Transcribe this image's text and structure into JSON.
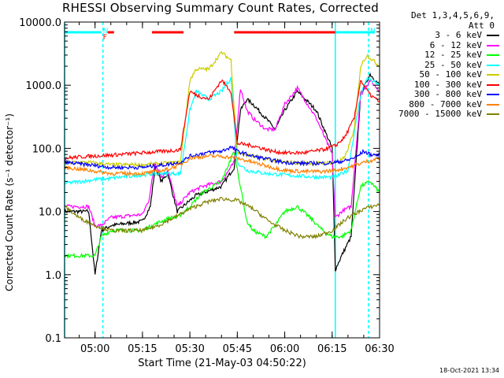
{
  "title": "RHESSI Observing Summary Count Rates, Corrected",
  "legend_header": [
    "Det 1,3,4,5,6,9,",
    "Att 0"
  ],
  "timestamp": "18-Oct-2021 13:34",
  "chart_data": {
    "type": "line",
    "xlabel": "Start Time (21-May-03 04:50:22)",
    "ylabel": "Corrected Count Rate (s⁻¹ detector⁻¹)",
    "xlim": [
      "04:50:22",
      "06:30:00"
    ],
    "x_ticks": [
      "05:00",
      "05:15",
      "05:30",
      "05:45",
      "06:00",
      "06:15",
      "06:30"
    ],
    "yscale": "log",
    "ylim": [
      0.1,
      10000.0
    ],
    "y_ticks": [
      "0.1",
      "1.0",
      "10.0",
      "100.0",
      "1000.0",
      "10000.0"
    ],
    "flags": [
      {
        "label": "N",
        "color": "#00ffff",
        "start": "04:50:22",
        "end": "05:02:00"
      },
      {
        "label": "N",
        "color": "#00ffff",
        "start": "06:16:00",
        "end": "06:28:30"
      },
      {
        "label": "F",
        "color": "#ff0000",
        "start": "05:04:00",
        "end": "05:06:00"
      },
      {
        "label": "",
        "color": "#ff0000",
        "start": "05:18:00",
        "end": "05:28:00"
      },
      {
        "label": "",
        "color": "#ff0000",
        "start": "05:44:00",
        "end": "06:16:00"
      }
    ],
    "vlines": [
      {
        "style": "solid",
        "color": "#00ffff",
        "t": "04:50:22"
      },
      {
        "style": "dashed",
        "color": "#00ffff",
        "t": "05:02:30"
      },
      {
        "style": "solid",
        "color": "#00ffff",
        "t": "06:16:00"
      },
      {
        "style": "dashed",
        "color": "#00ffff",
        "t": "06:26:30"
      }
    ],
    "series": [
      {
        "name": "3 - 6 keV",
        "color": "#000000",
        "t": [
          "04:50:22",
          "04:58:00",
          "05:00:00",
          "05:02:00",
          "05:05:00",
          "05:15:00",
          "05:17:30",
          "05:19:00",
          "05:21:00",
          "05:23:00",
          "05:26:00",
          "05:30:00",
          "05:32:00",
          "05:40:00",
          "05:44:00",
          "05:46:00",
          "05:48:00",
          "05:50:00",
          "05:54:00",
          "05:57:00",
          "06:00:00",
          "06:04:00",
          "06:10:00",
          "06:15:00",
          "06:16:00",
          "06:18:00",
          "06:21:00",
          "06:24:00",
          "06:27:00",
          "06:30:00"
        ],
        "v": [
          10,
          10,
          1.0,
          5,
          6,
          7,
          12,
          50,
          30,
          40,
          10,
          15,
          18,
          25,
          50,
          400,
          600,
          500,
          300,
          200,
          400,
          800,
          400,
          100,
          1.2,
          2,
          4,
          700,
          1500,
          1000
        ]
      },
      {
        "name": "6 - 12 keV",
        "color": "#ff00ff",
        "t": [
          "04:50:22",
          "04:58:00",
          "05:00:00",
          "05:02:00",
          "05:05:00",
          "05:15:00",
          "05:17:00",
          "05:19:00",
          "05:21:00",
          "05:23:00",
          "05:26:00",
          "05:30:00",
          "05:34:00",
          "05:40:00",
          "05:44:00",
          "05:46:00",
          "05:48:00",
          "05:50:00",
          "05:54:00",
          "05:57:00",
          "06:00:00",
          "06:04:00",
          "06:10:00",
          "06:15:00",
          "06:16:00",
          "06:18:00",
          "06:21:00",
          "06:24:00",
          "06:27:00",
          "06:30:00"
        ],
        "v": [
          12,
          12,
          6,
          6,
          8,
          9,
          15,
          60,
          35,
          45,
          12,
          20,
          25,
          30,
          60,
          900,
          400,
          300,
          200,
          200,
          500,
          900,
          300,
          80,
          8,
          10,
          12,
          700,
          1200,
          800
        ]
      },
      {
        "name": "12 - 25 keV",
        "color": "#00ff00",
        "t": [
          "04:50:22",
          "04:58:00",
          "05:00:00",
          "05:02:00",
          "05:05:00",
          "05:15:00",
          "05:18:00",
          "05:21:00",
          "05:24:00",
          "05:26:00",
          "05:30:00",
          "05:34:00",
          "05:40:00",
          "05:44:00",
          "05:46:00",
          "05:48:00",
          "05:50:00",
          "05:54:00",
          "05:57:00",
          "06:00:00",
          "06:04:00",
          "06:08:00",
          "06:12:00",
          "06:15:00",
          "06:18:00",
          "06:21:00",
          "06:24:00",
          "06:27:00",
          "06:30:00"
        ],
        "v": [
          2,
          2,
          2,
          4,
          5,
          5,
          6,
          7,
          8,
          8,
          12,
          20,
          30,
          90,
          25,
          7,
          5,
          4,
          6,
          10,
          12,
          8,
          5,
          4,
          4,
          5,
          25,
          30,
          20
        ]
      },
      {
        "name": "25 - 50 keV",
        "color": "#00ffff",
        "t": [
          "04:50:22",
          "04:56:00",
          "05:00:00",
          "05:04:00",
          "05:08:00",
          "05:15:00",
          "05:20:00",
          "05:27:00",
          "05:30:00",
          "05:32:00",
          "05:36:00",
          "05:40:00",
          "05:43:00",
          "05:45:00",
          "05:48:00",
          "05:54:00",
          "06:00:00",
          "06:06:00",
          "06:12:00",
          "06:16:00",
          "06:20:00",
          "06:24:00",
          "06:26:00",
          "06:30:00"
        ],
        "v": [
          28,
          30,
          32,
          33,
          35,
          38,
          40,
          40,
          400,
          800,
          600,
          800,
          1300,
          60,
          45,
          40,
          38,
          36,
          35,
          35,
          45,
          700,
          1300,
          1000
        ]
      },
      {
        "name": "50 - 100 keV",
        "color": "#cccc00",
        "t": [
          "04:50:22",
          "04:58:00",
          "05:05:00",
          "05:15:00",
          "05:22:00",
          "05:27:00",
          "05:30:00",
          "05:32:00",
          "05:36:00",
          "05:40:00",
          "05:43:00",
          "05:45:00",
          "05:50:00",
          "05:56:00",
          "06:00:00",
          "06:06:00",
          "06:12:00",
          "06:16:00",
          "06:19:00",
          "06:22:00",
          "06:24:00",
          "06:26:00",
          "06:30:00"
        ],
        "v": [
          60,
          60,
          55,
          55,
          58,
          60,
          1200,
          1800,
          1800,
          3300,
          2500,
          85,
          75,
          65,
          60,
          58,
          58,
          60,
          70,
          200,
          2000,
          3000,
          2000
        ]
      },
      {
        "name": "100 - 300 keV",
        "color": "#ff0000",
        "t": [
          "04:50:22",
          "04:58:00",
          "05:05:00",
          "05:15:00",
          "05:22:00",
          "05:27:00",
          "05:30:00",
          "05:32:00",
          "05:36:00",
          "05:40:00",
          "05:43:00",
          "05:45:00",
          "05:50:00",
          "05:56:00",
          "06:00:00",
          "06:06:00",
          "06:12:00",
          "06:16:00",
          "06:19:00",
          "06:22:00",
          "06:24:00",
          "06:27:00",
          "06:30:00"
        ],
        "v": [
          70,
          75,
          78,
          85,
          90,
          95,
          800,
          700,
          600,
          1200,
          800,
          120,
          110,
          90,
          85,
          85,
          95,
          110,
          150,
          300,
          1200,
          700,
          550
        ]
      },
      {
        "name": "300 - 800 keV",
        "color": "#0000ff",
        "t": [
          "04:50:22",
          "04:58:00",
          "05:05:00",
          "05:15:00",
          "05:22:00",
          "05:27:00",
          "05:30:00",
          "05:35:00",
          "05:40:00",
          "05:43:00",
          "05:45:00",
          "05:50:00",
          "05:56:00",
          "06:00:00",
          "06:06:00",
          "06:12:00",
          "06:16:00",
          "06:20:00",
          "06:23:00",
          "06:25:00",
          "06:27:00",
          "06:30:00"
        ],
        "v": [
          60,
          55,
          50,
          50,
          55,
          60,
          75,
          85,
          90,
          105,
          90,
          75,
          65,
          60,
          58,
          58,
          60,
          65,
          75,
          90,
          80,
          78
        ]
      },
      {
        "name": "800 - 7000 keV",
        "color": "#ff8000",
        "t": [
          "04:50:22",
          "04:58:00",
          "05:05:00",
          "05:15:00",
          "05:22:00",
          "05:27:00",
          "05:30:00",
          "05:35:00",
          "05:40:00",
          "05:45:00",
          "05:50:00",
          "05:56:00",
          "06:00:00",
          "06:06:00",
          "06:12:00",
          "06:16:00",
          "06:20:00",
          "06:25:00",
          "06:30:00"
        ],
        "v": [
          50,
          45,
          40,
          40,
          45,
          55,
          70,
          75,
          75,
          70,
          60,
          50,
          45,
          43,
          43,
          45,
          50,
          60,
          70
        ]
      },
      {
        "name": "7000 - 15000 keV",
        "color": "#808000",
        "t": [
          "04:50:22",
          "04:55:00",
          "05:00:00",
          "05:05:00",
          "05:10:00",
          "05:15:00",
          "05:20:00",
          "05:25:00",
          "05:30:00",
          "05:35:00",
          "05:40:00",
          "05:45:00",
          "05:50:00",
          "05:55:00",
          "06:00:00",
          "06:05:00",
          "06:10:00",
          "06:15:00",
          "06:20:00",
          "06:25:00",
          "06:30:00"
        ],
        "v": [
          12,
          8,
          6,
          5,
          5,
          5,
          6,
          8,
          11,
          14,
          16,
          15,
          11,
          7,
          5,
          4,
          4,
          5,
          8,
          11,
          13
        ]
      }
    ]
  }
}
